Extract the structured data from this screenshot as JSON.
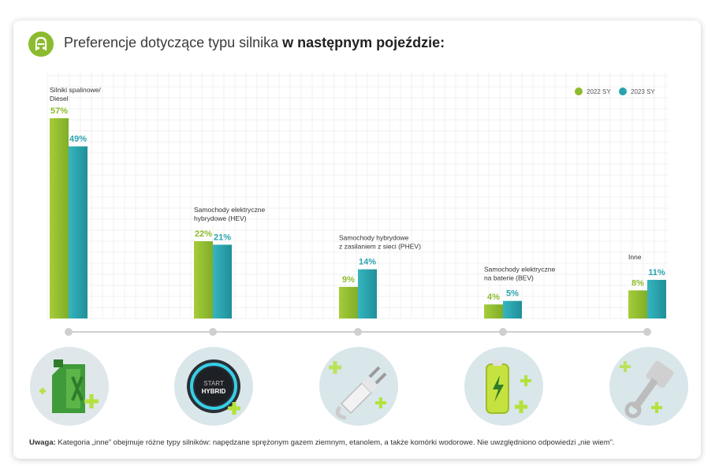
{
  "title": {
    "regular": "Preferencje dotyczące typu silnika ",
    "bold": "w następnym pojeździe:"
  },
  "note": {
    "label": "Uwaga:",
    "text": " Kategoria „inne” obejmuje różne typy silników: napędzane sprężonym gazem ziemnym, etanolem, a także komórki wodorowe. Nie uwzględniono odpowiedzi „nie wiem”."
  },
  "icons": [
    "fuel-canister-icon",
    "start-hybrid-button-icon",
    "plug-icon",
    "battery-icon",
    "piston-icon"
  ],
  "colors": {
    "series2022": "#8dbb2f",
    "series2023": "#2aa3ad",
    "value2022": "#8dbb2f",
    "value2023": "#2aa3ad"
  },
  "chart_data": {
    "type": "bar",
    "categories": [
      [
        "Silniki spalinowe/",
        "Diesel"
      ],
      [
        "Samochody elektryczne",
        "hybrydowe (HEV)"
      ],
      [
        "Samochody hybrydowe",
        "z zasilaniem z sieci (PHEV)"
      ],
      [
        "Samochody elektryczne",
        "na baterie (BEV)"
      ],
      [
        "Inne"
      ]
    ],
    "series": [
      {
        "name": "2022 SY",
        "values": [
          57,
          22,
          9,
          4,
          8
        ],
        "labels": [
          "57%",
          "22%",
          "9%",
          "4%",
          "8%"
        ]
      },
      {
        "name": "2023 SY",
        "values": [
          49,
          21,
          14,
          5,
          11
        ],
        "labels": [
          "49%",
          "21%",
          "14%",
          "5%",
          "11%"
        ]
      }
    ],
    "ylim": [
      0,
      57
    ],
    "grid": true,
    "legend": "top-right"
  }
}
